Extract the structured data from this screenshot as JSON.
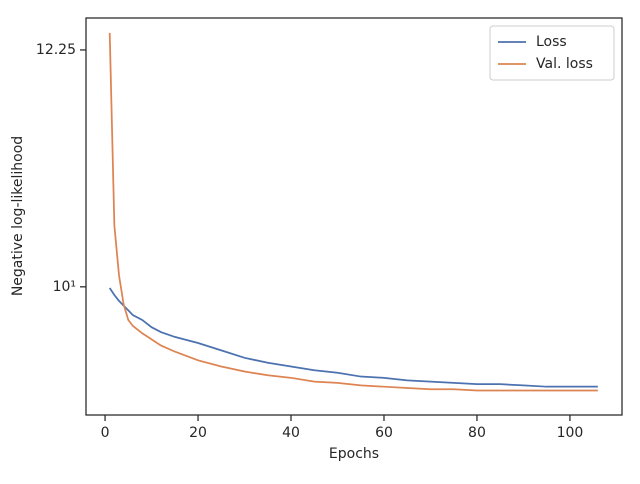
{
  "chart_data": {
    "type": "line",
    "xlabel": "Epochs",
    "ylabel": "Negative log-likelihood",
    "x": [
      1,
      2,
      3,
      4,
      5,
      6,
      8,
      10,
      12,
      15,
      20,
      25,
      30,
      35,
      40,
      45,
      50,
      55,
      60,
      65,
      70,
      75,
      80,
      85,
      90,
      95,
      100,
      106
    ],
    "series": [
      {
        "name": "Loss",
        "color": "#4c72b0",
        "values": [
          9.99,
          9.93,
          9.88,
          9.84,
          9.8,
          9.76,
          9.72,
          9.66,
          9.62,
          9.58,
          9.53,
          9.47,
          9.41,
          9.37,
          9.34,
          9.31,
          9.29,
          9.26,
          9.25,
          9.23,
          9.22,
          9.21,
          9.2,
          9.2,
          9.19,
          9.18,
          9.18,
          9.18
        ]
      },
      {
        "name": "Val. loss",
        "color": "#dd8452",
        "values": [
          12.43,
          10.54,
          10.1,
          9.85,
          9.72,
          9.67,
          9.61,
          9.56,
          9.51,
          9.46,
          9.39,
          9.34,
          9.3,
          9.27,
          9.25,
          9.22,
          9.21,
          9.19,
          9.18,
          9.17,
          9.16,
          9.16,
          9.15,
          9.15,
          9.15,
          9.15,
          9.15,
          9.15
        ]
      }
    ],
    "xlim": [
      -4.1,
      111.2
    ],
    "xticks": [
      0,
      20,
      40,
      60,
      80,
      100
    ],
    "ylim": [
      8.96,
      12.59
    ],
    "yscale": "log",
    "yticks": [
      {
        "value": 10,
        "label": "10¹"
      },
      12.25
    ],
    "grid": false,
    "legend": "upper right"
  }
}
